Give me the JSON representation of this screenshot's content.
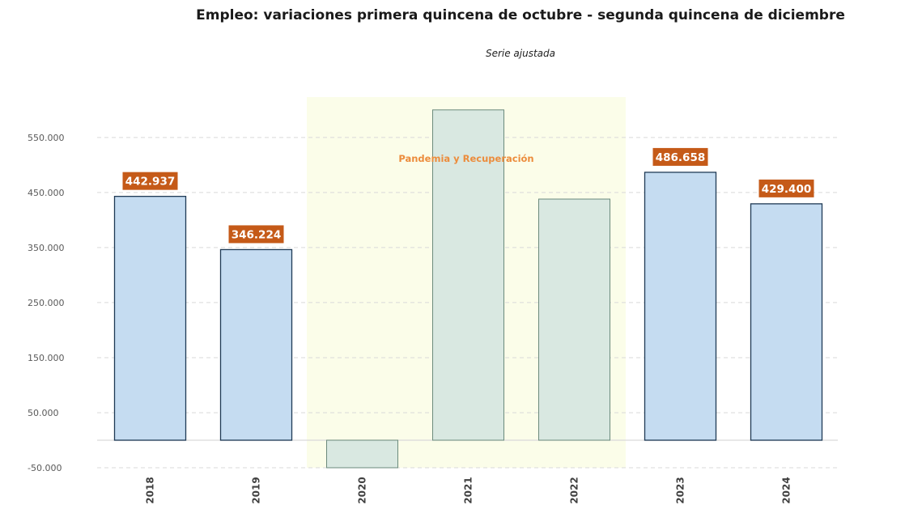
{
  "chart_data": {
    "type": "bar",
    "title": "Empleo: variaciones primera quincena de octubre - segunda quincena de diciembre",
    "subtitle": "Serie ajustada",
    "xlabel": "",
    "ylabel": "",
    "categories": [
      "2018",
      "2019",
      "2020",
      "2021",
      "2022",
      "2023",
      "2024"
    ],
    "values": [
      442937,
      346224,
      -52000,
      600000,
      438000,
      486658,
      429400
    ],
    "data_labels": [
      "442.937",
      "346.224",
      null,
      null,
      null,
      "486.658",
      "429.400"
    ],
    "highlighted": [
      false,
      false,
      true,
      true,
      true,
      false,
      false
    ],
    "ylim": [
      -50000,
      610000
    ],
    "y_ticks": [
      -50000,
      50000,
      150000,
      250000,
      350000,
      450000,
      550000
    ],
    "y_tick_labels": [
      "-50.000",
      "50.000",
      "150.000",
      "250.000",
      "350.000",
      "450.000",
      "550.000"
    ],
    "grid": "horizontal-dashed",
    "legend": "none",
    "annotation": {
      "text": "Pandemia y Recuperación",
      "span": [
        "2020",
        "2022"
      ]
    },
    "colors": {
      "bar_regular": "#c5dcf1",
      "bar_regular_border": "#1f3a55",
      "bar_highlight": "#d9e8e1",
      "bar_highlight_border": "#6b8a7c",
      "band": "#fbfde9",
      "data_label_bg": "#c55a18",
      "annotation_text": "#ec8c3c",
      "gridline": "#d9d9d9",
      "zero_line": "#d9d9d9"
    }
  }
}
